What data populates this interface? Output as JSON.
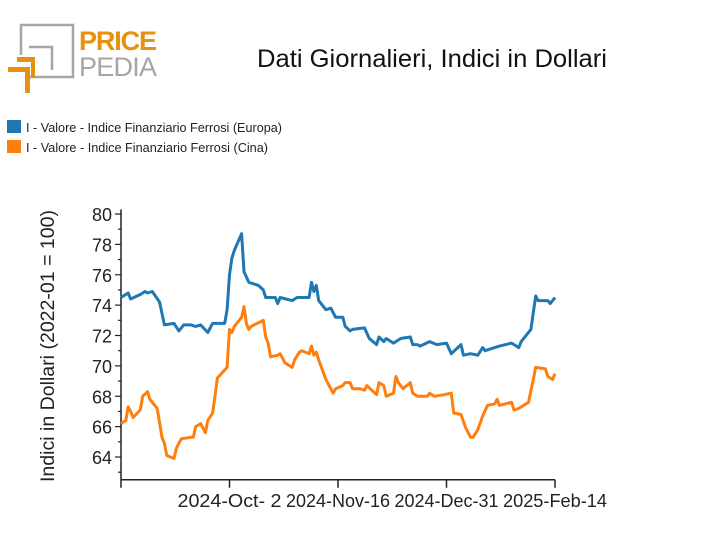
{
  "logo": {
    "word1": "PRICE",
    "word2": "PEDIA",
    "colors": {
      "orange": "#e8910c",
      "gray": "#a6a6a6"
    }
  },
  "chart_data": {
    "type": "line",
    "title": "Dati Giornalieri, Indici in Dollari",
    "xlabel": "",
    "ylabel": "Indici in Dollari (2022-01 = 100)",
    "ylim": [
      62.5,
      80.3
    ],
    "xlim": [
      "2024-08-18",
      "2025-02-14"
    ],
    "yticks": [
      "64",
      "66",
      "68",
      "70",
      "72",
      "74",
      "76",
      "78",
      "80"
    ],
    "xticks": [
      {
        "date": "2024-08-18",
        "label": ""
      },
      {
        "date": "2024-10-02",
        "label": "2024-Oct- 2"
      },
      {
        "date": "2024-11-16",
        "label": "2024-Nov-16"
      },
      {
        "date": "2024-12-31",
        "label": "2024-Dec-31"
      },
      {
        "date": "2025-02-14",
        "label": "2025-Feb-14"
      }
    ],
    "grid": false,
    "legend_position": "top-left",
    "series": [
      {
        "name": "I - Valore - Indice Finanziario Ferrosi (Europa)",
        "color": "#1f77b4",
        "points": [
          [
            "2024-08-18",
            74.5
          ],
          [
            "2024-08-21",
            74.8
          ],
          [
            "2024-08-22",
            74.4
          ],
          [
            "2024-08-26",
            74.7
          ],
          [
            "2024-08-28",
            74.9
          ],
          [
            "2024-08-29",
            74.8
          ],
          [
            "2024-08-31",
            74.9
          ],
          [
            "2024-09-03",
            74.2
          ],
          [
            "2024-09-05",
            72.7
          ],
          [
            "2024-09-09",
            72.8
          ],
          [
            "2024-09-11",
            72.3
          ],
          [
            "2024-09-13",
            72.7
          ],
          [
            "2024-09-16",
            72.7
          ],
          [
            "2024-09-18",
            72.6
          ],
          [
            "2024-09-20",
            72.7
          ],
          [
            "2024-09-23",
            72.2
          ],
          [
            "2024-09-25",
            72.8
          ],
          [
            "2024-09-30",
            72.8
          ],
          [
            "2024-10-01",
            73.7
          ],
          [
            "2024-10-02",
            76.0
          ],
          [
            "2024-10-03",
            77.1
          ],
          [
            "2024-10-04",
            77.6
          ],
          [
            "2024-10-07",
            78.7
          ],
          [
            "2024-10-08",
            76.2
          ],
          [
            "2024-10-10",
            75.5
          ],
          [
            "2024-10-14",
            75.3
          ],
          [
            "2024-10-16",
            75.0
          ],
          [
            "2024-10-17",
            74.5
          ],
          [
            "2024-10-21",
            74.5
          ],
          [
            "2024-10-22",
            74.1
          ],
          [
            "2024-10-23",
            74.5
          ],
          [
            "2024-10-28",
            74.3
          ],
          [
            "2024-10-30",
            74.5
          ],
          [
            "2024-11-04",
            74.5
          ],
          [
            "2024-11-05",
            75.5
          ],
          [
            "2024-11-06",
            74.9
          ],
          [
            "2024-11-07",
            75.3
          ],
          [
            "2024-11-08",
            74.3
          ],
          [
            "2024-11-11",
            73.7
          ],
          [
            "2024-11-13",
            73.8
          ],
          [
            "2024-11-15",
            73.2
          ],
          [
            "2024-11-18",
            73.2
          ],
          [
            "2024-11-19",
            72.6
          ],
          [
            "2024-11-21",
            72.3
          ],
          [
            "2024-11-22",
            72.4
          ],
          [
            "2024-11-27",
            72.5
          ],
          [
            "2024-11-29",
            71.8
          ],
          [
            "2024-12-02",
            71.4
          ],
          [
            "2024-12-03",
            71.9
          ],
          [
            "2024-12-05",
            71.6
          ],
          [
            "2024-12-06",
            71.8
          ],
          [
            "2024-12-09",
            71.5
          ],
          [
            "2024-12-12",
            71.8
          ],
          [
            "2024-12-16",
            71.9
          ],
          [
            "2024-12-17",
            71.4
          ],
          [
            "2024-12-19",
            71.4
          ],
          [
            "2024-12-20",
            71.3
          ],
          [
            "2024-12-24",
            71.6
          ],
          [
            "2024-12-27",
            71.4
          ],
          [
            "2024-12-31",
            71.5
          ],
          [
            "2025-01-02",
            70.8
          ],
          [
            "2025-01-06",
            71.4
          ],
          [
            "2025-01-07",
            70.7
          ],
          [
            "2025-01-10",
            70.8
          ],
          [
            "2025-01-13",
            70.7
          ],
          [
            "2025-01-15",
            71.2
          ],
          [
            "2025-01-16",
            71.0
          ],
          [
            "2025-01-20",
            71.2
          ],
          [
            "2025-01-22",
            71.3
          ],
          [
            "2025-01-27",
            71.5
          ],
          [
            "2025-01-28",
            71.4
          ],
          [
            "2025-01-30",
            71.2
          ],
          [
            "2025-01-31",
            71.6
          ],
          [
            "2025-02-04",
            72.4
          ],
          [
            "2025-02-06",
            74.6
          ],
          [
            "2025-02-07",
            74.3
          ],
          [
            "2025-02-11",
            74.3
          ],
          [
            "2025-02-12",
            74.1
          ],
          [
            "2025-02-14",
            74.5
          ]
        ]
      },
      {
        "name": "I - Valore - Indice Finanziario Ferrosi (Cina)",
        "color": "#ff7f0e",
        "points": [
          [
            "2024-08-18",
            66.2
          ],
          [
            "2024-08-20",
            66.4
          ],
          [
            "2024-08-21",
            67.3
          ],
          [
            "2024-08-22",
            67.0
          ],
          [
            "2024-08-23",
            66.6
          ],
          [
            "2024-08-26",
            67.1
          ],
          [
            "2024-08-27",
            68.0
          ],
          [
            "2024-08-29",
            68.3
          ],
          [
            "2024-08-30",
            67.8
          ],
          [
            "2024-09-02",
            67.2
          ],
          [
            "2024-09-04",
            65.3
          ],
          [
            "2024-09-05",
            64.9
          ],
          [
            "2024-09-06",
            64.1
          ],
          [
            "2024-09-09",
            63.9
          ],
          [
            "2024-09-10",
            64.6
          ],
          [
            "2024-09-12",
            65.2
          ],
          [
            "2024-09-16",
            65.3
          ],
          [
            "2024-09-17",
            65.3
          ],
          [
            "2024-09-18",
            66.0
          ],
          [
            "2024-09-20",
            66.2
          ],
          [
            "2024-09-22",
            65.6
          ],
          [
            "2024-09-23",
            66.4
          ],
          [
            "2024-09-25",
            66.9
          ],
          [
            "2024-09-26",
            68.0
          ],
          [
            "2024-09-27",
            69.2
          ],
          [
            "2024-10-01",
            69.9
          ],
          [
            "2024-10-02",
            72.4
          ],
          [
            "2024-10-03",
            72.2
          ],
          [
            "2024-10-04",
            72.6
          ],
          [
            "2024-10-07",
            73.2
          ],
          [
            "2024-10-08",
            73.9
          ],
          [
            "2024-10-09",
            72.8
          ],
          [
            "2024-10-10",
            72.4
          ],
          [
            "2024-10-11",
            72.6
          ],
          [
            "2024-10-16",
            73.0
          ],
          [
            "2024-10-17",
            71.9
          ],
          [
            "2024-10-18",
            71.5
          ],
          [
            "2024-10-19",
            70.6
          ],
          [
            "2024-10-22",
            70.7
          ],
          [
            "2024-10-23",
            70.8
          ],
          [
            "2024-10-25",
            70.2
          ],
          [
            "2024-10-28",
            69.9
          ],
          [
            "2024-10-29",
            70.4
          ],
          [
            "2024-10-31",
            70.9
          ],
          [
            "2024-11-01",
            71.0
          ],
          [
            "2024-11-04",
            70.8
          ],
          [
            "2024-11-05",
            71.3
          ],
          [
            "2024-11-06",
            70.7
          ],
          [
            "2024-11-07",
            70.9
          ],
          [
            "2024-11-08",
            70.4
          ],
          [
            "2024-11-11",
            69.1
          ],
          [
            "2024-11-14",
            68.2
          ],
          [
            "2024-11-15",
            68.5
          ],
          [
            "2024-11-18",
            68.7
          ],
          [
            "2024-11-19",
            68.9
          ],
          [
            "2024-11-21",
            68.9
          ],
          [
            "2024-11-22",
            68.5
          ],
          [
            "2024-11-25",
            68.5
          ],
          [
            "2024-11-27",
            68.4
          ],
          [
            "2024-11-28",
            68.7
          ],
          [
            "2024-11-30",
            68.4
          ],
          [
            "2024-12-02",
            68.1
          ],
          [
            "2024-12-03",
            68.9
          ],
          [
            "2024-12-05",
            68.7
          ],
          [
            "2024-12-06",
            68.0
          ],
          [
            "2024-12-09",
            68.2
          ],
          [
            "2024-12-10",
            69.3
          ],
          [
            "2024-12-11",
            68.9
          ],
          [
            "2024-12-13",
            68.5
          ],
          [
            "2024-12-16",
            68.9
          ],
          [
            "2024-12-17",
            68.2
          ],
          [
            "2024-12-19",
            68.0
          ],
          [
            "2024-12-23",
            68.0
          ],
          [
            "2024-12-24",
            68.2
          ],
          [
            "2024-12-26",
            68.0
          ],
          [
            "2024-12-30",
            68.1
          ],
          [
            "2025-01-02",
            68.2
          ],
          [
            "2025-01-03",
            66.9
          ],
          [
            "2025-01-06",
            66.8
          ],
          [
            "2025-01-08",
            65.9
          ],
          [
            "2025-01-10",
            65.3
          ],
          [
            "2025-01-11",
            65.3
          ],
          [
            "2025-01-13",
            65.8
          ],
          [
            "2025-01-15",
            66.7
          ],
          [
            "2025-01-17",
            67.4
          ],
          [
            "2025-01-20",
            67.5
          ],
          [
            "2025-01-21",
            67.8
          ],
          [
            "2025-01-22",
            67.4
          ],
          [
            "2025-01-27",
            67.6
          ],
          [
            "2025-01-28",
            67.1
          ],
          [
            "2025-01-30",
            67.2
          ],
          [
            "2025-02-03",
            67.6
          ],
          [
            "2025-02-05",
            69.1
          ],
          [
            "2025-02-06",
            69.9
          ],
          [
            "2025-02-10",
            69.8
          ],
          [
            "2025-02-11",
            69.3
          ],
          [
            "2025-02-13",
            69.1
          ],
          [
            "2025-02-14",
            69.5
          ]
        ]
      }
    ]
  }
}
